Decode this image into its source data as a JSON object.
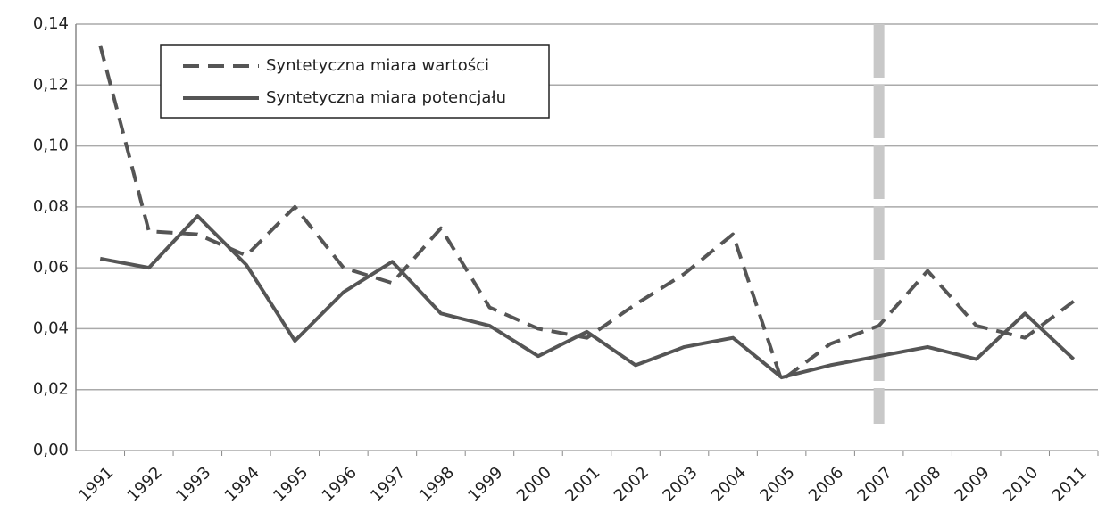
{
  "chart_data": {
    "type": "line",
    "categories": [
      "1991",
      "1992",
      "1993",
      "1994",
      "1995",
      "1996",
      "1997",
      "1998",
      "1999",
      "2000",
      "2001",
      "2002",
      "2003",
      "2004",
      "2005",
      "2006",
      "2007",
      "2008",
      "2009",
      "2010",
      "2011"
    ],
    "series": [
      {
        "name": "Syntetyczna miara wartości",
        "color": "#555555",
        "dashed": true,
        "values": [
          0.133,
          0.072,
          0.071,
          0.064,
          0.08,
          0.06,
          0.055,
          0.073,
          0.047,
          0.04,
          0.037,
          0.048,
          0.058,
          0.071,
          0.023,
          0.035,
          0.041,
          0.059,
          0.041,
          0.037,
          0.049
        ]
      },
      {
        "name": "Syntetyczna miara potencjału",
        "color": "#555555",
        "dashed": false,
        "values": [
          0.063,
          0.06,
          0.077,
          0.061,
          0.036,
          0.052,
          0.062,
          0.045,
          0.041,
          0.031,
          0.039,
          0.028,
          0.034,
          0.037,
          0.024,
          0.028,
          0.031,
          0.034,
          0.03,
          0.045,
          0.03
        ]
      }
    ],
    "ylim": [
      0,
      0.14
    ],
    "yticks": [
      {
        "value": 0,
        "label": "0,00"
      },
      {
        "value": 0.02,
        "label": "0,02"
      },
      {
        "value": 0.04,
        "label": "0,04"
      },
      {
        "value": 0.06,
        "label": "0,06"
      },
      {
        "value": 0.08,
        "label": "0,08"
      },
      {
        "value": 0.1,
        "label": "0,10"
      },
      {
        "value": 0.12,
        "label": "0,12"
      },
      {
        "value": 0.14,
        "label": "0,14"
      }
    ],
    "grid": true,
    "highlight_category": "2007",
    "legend": "top-left"
  }
}
